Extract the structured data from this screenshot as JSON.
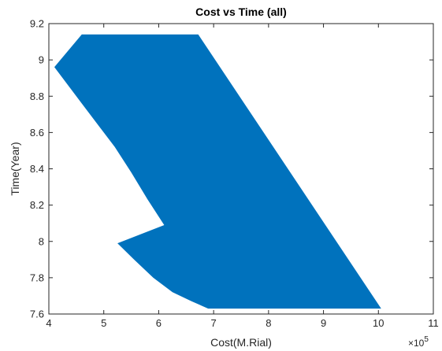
{
  "chart_data": {
    "type": "area",
    "title": "Cost vs Time (all)",
    "xlabel": "Cost(M.Rial)",
    "ylabel": "Time(Year)",
    "x_exponent_base": "×10",
    "x_exponent_power": "5",
    "xlim": [
      4,
      11
    ],
    "ylim": [
      7.6,
      9.2
    ],
    "x_ticks": [
      4,
      5,
      6,
      7,
      8,
      9,
      10,
      11
    ],
    "y_ticks": [
      7.6,
      7.8,
      8.0,
      8.2,
      8.4,
      8.6,
      8.8,
      9.0,
      9.2
    ],
    "x_tick_labels": [
      "4",
      "5",
      "6",
      "7",
      "8",
      "9",
      "10",
      "11"
    ],
    "y_tick_labels": [
      "7.6",
      "7.8",
      "8",
      "8.2",
      "8.4",
      "8.6",
      "8.8",
      "9",
      "9.2"
    ],
    "grid": false,
    "series": [
      {
        "fill_color": "#0072bd",
        "points": [
          [
            4.6,
            9.14
          ],
          [
            6.72,
            9.14
          ],
          [
            10.05,
            7.63
          ],
          [
            6.9,
            7.63
          ],
          [
            6.6,
            7.67
          ],
          [
            6.25,
            7.72
          ],
          [
            5.9,
            7.8
          ],
          [
            5.55,
            7.9
          ],
          [
            5.25,
            7.99
          ],
          [
            6.1,
            8.09
          ],
          [
            5.8,
            8.23
          ],
          [
            5.5,
            8.38
          ],
          [
            5.2,
            8.52
          ],
          [
            4.9,
            8.64
          ],
          [
            4.6,
            8.76
          ],
          [
            4.35,
            8.86
          ],
          [
            4.1,
            8.96
          ]
        ]
      }
    ]
  }
}
